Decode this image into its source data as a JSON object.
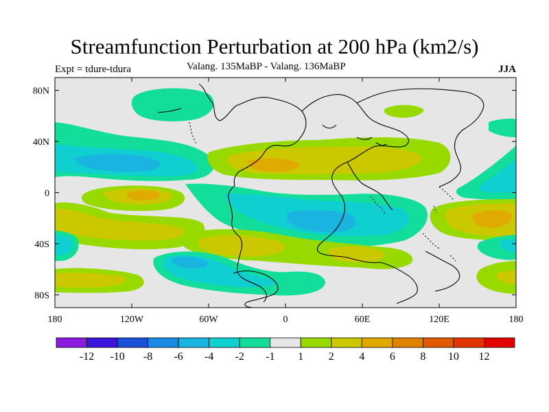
{
  "title": "Streamfunction Perturbation at 200 hPa (km2/s)",
  "subtitle_left": "Expt = tdure-tdura",
  "subtitle_center": "Valang.  135MaBP - Valang.  136MaBP",
  "subtitle_right": "JJA",
  "map": {
    "lon_ticks": [
      {
        "lon": -180,
        "label": "180"
      },
      {
        "lon": -120,
        "label": "120W"
      },
      {
        "lon": -60,
        "label": "60W"
      },
      {
        "lon": 0,
        "label": "0"
      },
      {
        "lon": 60,
        "label": "60E"
      },
      {
        "lon": 120,
        "label": "120E"
      },
      {
        "lon": 180,
        "label": "180"
      }
    ],
    "lat_ticks": [
      {
        "lat": 80,
        "label": "80N"
      },
      {
        "lat": 40,
        "label": "40N"
      },
      {
        "lat": 0,
        "label": "0"
      },
      {
        "lat": -40,
        "label": "40S"
      },
      {
        "lat": -80,
        "label": "80S"
      }
    ],
    "lon_range": [
      -180,
      180
    ],
    "lat_range": [
      -90,
      90
    ]
  },
  "colorbar": {
    "colors": [
      "#8a1ce0",
      "#3c16dc",
      "#1a50d8",
      "#1a8ae6",
      "#1ab4e0",
      "#10cfd0",
      "#12dd9a",
      "#e6e6e6",
      "#98da00",
      "#ccc800",
      "#e0aa00",
      "#e08400",
      "#e25a00",
      "#e23400",
      "#e20000"
    ],
    "labels": [
      "-12",
      "-10",
      "-8",
      "-6",
      "-4",
      "-2",
      "-1",
      "1",
      "2",
      "4",
      "6",
      "8",
      "10",
      "12"
    ]
  },
  "colors": {
    "background": "#ffffff",
    "neutral": "#e6e6e6",
    "coastline": "#000000"
  }
}
